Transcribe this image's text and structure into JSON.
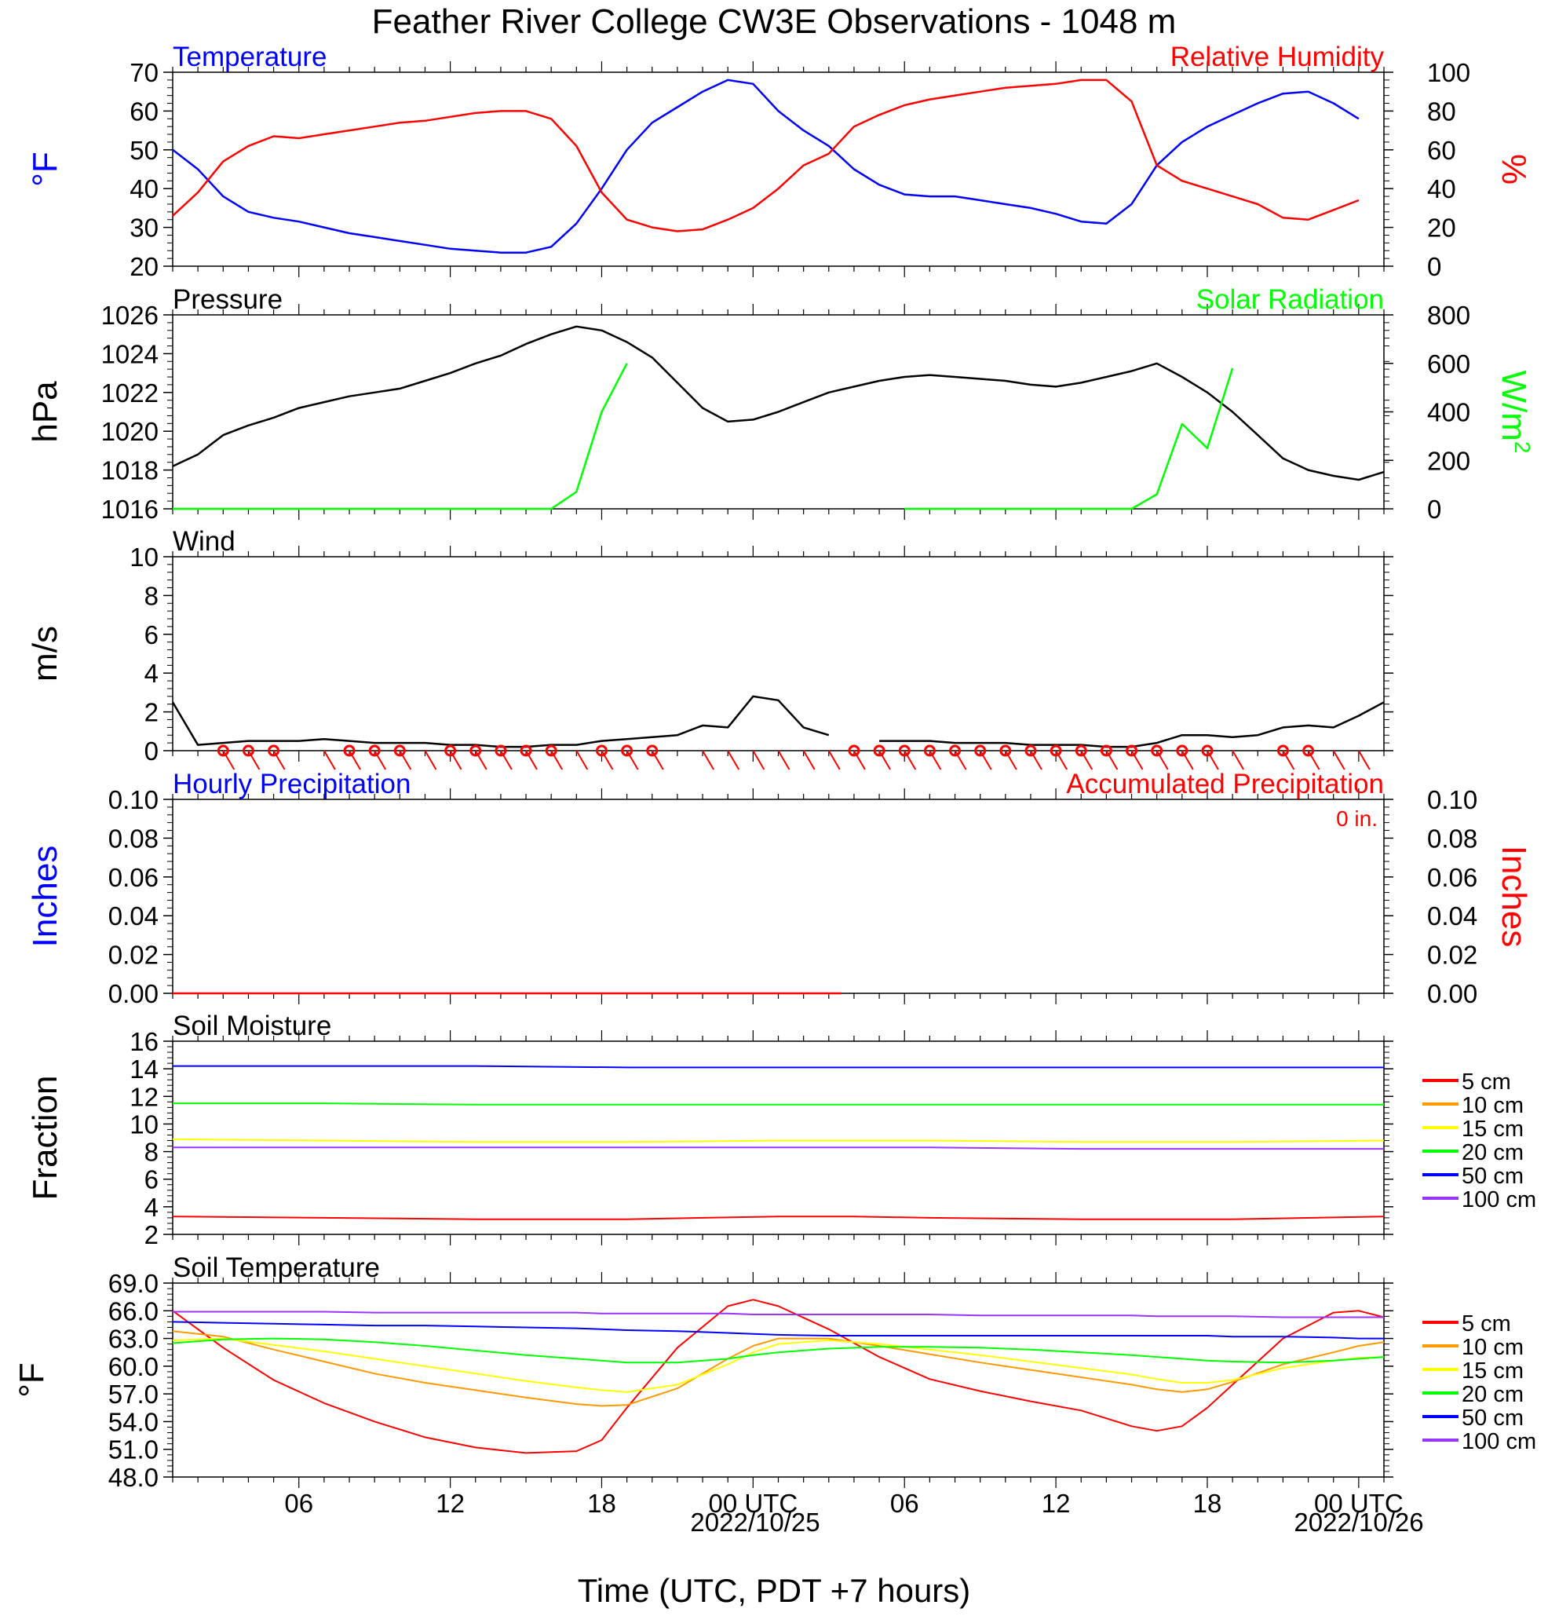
{
  "figure": {
    "title": "Feather River College CW3E Observations - 1048 m",
    "xlabel": "Time (UTC, PDT +7 hours)",
    "date_labels": [
      "2022/10/25",
      "2022/10/26"
    ]
  },
  "x_axis": {
    "range_hours": [
      0,
      48
    ],
    "major_ticks": [
      {
        "h": 5,
        "label": "06"
      },
      {
        "h": 11,
        "label": "12"
      },
      {
        "h": 17,
        "label": "18"
      },
      {
        "h": 23,
        "label": "00 UTC"
      },
      {
        "h": 29,
        "label": "06"
      },
      {
        "h": 35,
        "label": "12"
      },
      {
        "h": 41,
        "label": "18"
      },
      {
        "h": 47,
        "label": "00 UTC"
      }
    ]
  },
  "colors": {
    "blue": "#0000ff",
    "red": "#ff0000",
    "green": "#00ff00",
    "black": "#000000",
    "orange": "#ff9900",
    "yellow": "#ffff00",
    "purple": "#9933ff"
  },
  "chart_data": [
    {
      "type": "line",
      "panel": "temperature",
      "left_title": "Temperature",
      "right_title": "Relative Humidity",
      "ylabel": "°F",
      "ylim": [
        20,
        70
      ],
      "yticks": [
        20,
        30,
        40,
        50,
        60,
        70
      ],
      "y2label": "%",
      "y2lim": [
        0,
        100
      ],
      "y2ticks": [
        0,
        20,
        40,
        60,
        80,
        100
      ],
      "x_hours": [
        0,
        1,
        2,
        3,
        4,
        5,
        6,
        7,
        8,
        9,
        10,
        11,
        12,
        13,
        14,
        15,
        16,
        17,
        18,
        19,
        20,
        21,
        22,
        23,
        24,
        25,
        26,
        27,
        28,
        29,
        30,
        31,
        32,
        33,
        34,
        35,
        36,
        37,
        38,
        39,
        40,
        41,
        42,
        43,
        44,
        45,
        46,
        47,
        48
      ],
      "series": [
        {
          "color": "blue",
          "axis": "left",
          "values": [
            50,
            45,
            38,
            34,
            32.5,
            31.5,
            30,
            28.5,
            27.5,
            26.5,
            25.5,
            24.5,
            24,
            23.5,
            23.5,
            25,
            31,
            40,
            50,
            57,
            61,
            65,
            68,
            67,
            60,
            55,
            51,
            45,
            41,
            38.5,
            38,
            38,
            37,
            36,
            35,
            33.5,
            31.5,
            31,
            36,
            46,
            52,
            56,
            59,
            62,
            64.5,
            65,
            62,
            58,
            null
          ]
        },
        {
          "color": "red",
          "axis": "right",
          "values": [
            26,
            38,
            54,
            62,
            67,
            66,
            68,
            70,
            72,
            74,
            75,
            77,
            79,
            80,
            80,
            76,
            62,
            38,
            24,
            20,
            18,
            19,
            24,
            30,
            40,
            52,
            58,
            72,
            78,
            83,
            86,
            88,
            90,
            92,
            93,
            94,
            96,
            96,
            85,
            52,
            44,
            40,
            36,
            32,
            25,
            24,
            29,
            34,
            null
          ]
        }
      ]
    },
    {
      "type": "line",
      "panel": "pressure",
      "left_title": "Pressure",
      "right_title": "Solar Radiation",
      "ylabel": "hPa",
      "ylim": [
        1016,
        1026
      ],
      "yticks": [
        1016,
        1018,
        1020,
        1022,
        1024,
        1026
      ],
      "y2label": "W/m",
      "y2label_sup": "2",
      "y2lim": [
        0,
        800
      ],
      "y2ticks": [
        0,
        200,
        400,
        600,
        800
      ],
      "x_hours": [
        0,
        1,
        2,
        3,
        4,
        5,
        6,
        7,
        8,
        9,
        10,
        11,
        12,
        13,
        14,
        15,
        16,
        17,
        18,
        19,
        20,
        21,
        22,
        23,
        24,
        25,
        26,
        27,
        28,
        29,
        30,
        31,
        32,
        33,
        34,
        35,
        36,
        37,
        38,
        39,
        40,
        41,
        42,
        43,
        44,
        45,
        46,
        47,
        48
      ],
      "series": [
        {
          "color": "black",
          "axis": "left",
          "values": [
            1018.2,
            1018.8,
            1019.8,
            1020.3,
            1020.7,
            1021.2,
            1021.5,
            1021.8,
            1022.0,
            1022.2,
            1022.6,
            1023.0,
            1023.5,
            1023.9,
            1024.5,
            1025.0,
            1025.4,
            1025.2,
            1024.6,
            1023.8,
            1022.5,
            1021.2,
            1020.5,
            1020.6,
            1021.0,
            1021.5,
            1022.0,
            1022.3,
            1022.6,
            1022.8,
            1022.9,
            1022.8,
            1022.7,
            1022.6,
            1022.4,
            1022.3,
            1022.5,
            1022.8,
            1023.1,
            1023.5,
            1022.8,
            1022.0,
            1021.0,
            1019.8,
            1018.6,
            1018.0,
            1017.7,
            1017.5,
            1017.9
          ]
        },
        {
          "color": "green",
          "axis": "right",
          "values": [
            0,
            0,
            0,
            0,
            0,
            0,
            0,
            0,
            0,
            0,
            0,
            0,
            0,
            0,
            0,
            0,
            70,
            400,
            600,
            null,
            null,
            null,
            null,
            null,
            null,
            null,
            null,
            null,
            null,
            0,
            0,
            0,
            0,
            0,
            0,
            0,
            0,
            0,
            0,
            60,
            350,
            250,
            580,
            null,
            null,
            null,
            null,
            null,
            null
          ]
        }
      ]
    },
    {
      "type": "line",
      "panel": "wind",
      "left_title": "Wind",
      "ylabel": "m/s",
      "ylim": [
        0,
        10
      ],
      "yticks": [
        0,
        2,
        4,
        6,
        8,
        10
      ],
      "x_hours": [
        0,
        1,
        2,
        3,
        4,
        5,
        6,
        7,
        8,
        9,
        10,
        11,
        12,
        13,
        14,
        15,
        16,
        17,
        18,
        19,
        20,
        21,
        22,
        23,
        24,
        25,
        26,
        27,
        28,
        29,
        30,
        31,
        32,
        33,
        34,
        35,
        36,
        37,
        38,
        39,
        40,
        41,
        42,
        43,
        44,
        45,
        46,
        47,
        48
      ],
      "series": [
        {
          "color": "black",
          "axis": "left",
          "values": [
            2.5,
            0.3,
            0.4,
            0.5,
            0.5,
            0.5,
            0.6,
            0.5,
            0.4,
            0.4,
            0.4,
            0.3,
            0.3,
            0.2,
            0.2,
            0.3,
            0.3,
            0.5,
            0.6,
            0.7,
            0.8,
            1.3,
            1.2,
            2.8,
            2.6,
            1.2,
            0.8,
            null,
            0.5,
            0.5,
            0.5,
            0.4,
            0.4,
            0.4,
            0.3,
            0.3,
            0.3,
            0.2,
            0.2,
            0.4,
            0.8,
            0.8,
            0.7,
            0.8,
            1.2,
            1.3,
            1.2,
            1.8,
            2.5
          ]
        }
      ],
      "barb_hours": [
        2,
        3,
        4,
        6,
        7,
        8,
        9,
        10,
        11,
        12,
        13,
        14,
        15,
        16,
        17,
        18,
        19,
        21,
        22,
        23,
        24,
        25,
        26,
        27,
        28,
        29,
        30,
        31,
        32,
        33,
        34,
        35,
        36,
        37,
        38,
        39,
        40,
        41,
        42,
        44,
        45,
        46,
        47
      ],
      "calm_hours": [
        2,
        3,
        4,
        7,
        8,
        9,
        11,
        12,
        13,
        14,
        15,
        17,
        18,
        19,
        27,
        28,
        29,
        30,
        31,
        32,
        33,
        34,
        35,
        36,
        37,
        38,
        39,
        40,
        41,
        44,
        45
      ]
    },
    {
      "type": "line",
      "panel": "precipitation",
      "left_title": "Hourly Precipitation",
      "right_title": "Accumulated Precipitation",
      "annotation": "0 in.",
      "ylabel": "Inches",
      "ylim": [
        0,
        0.1
      ],
      "yticks": [
        "0.00",
        "0.02",
        "0.04",
        "0.06",
        "0.08",
        "0.10"
      ],
      "y2label": "Inches",
      "y2lim": [
        0,
        0.1
      ],
      "y2ticks": [
        "0.00",
        "0.02",
        "0.04",
        "0.06",
        "0.08",
        "0.10"
      ],
      "x_hours": [
        0,
        26.5,
        27,
        48
      ],
      "series": [
        {
          "color": "red",
          "axis": "left",
          "values": [
            0,
            0,
            null,
            0
          ]
        }
      ]
    },
    {
      "type": "line",
      "panel": "soil_moisture",
      "left_title": "Soil Moisture",
      "ylabel": "Fraction",
      "ylim": [
        2,
        16
      ],
      "yticks": [
        2,
        4,
        6,
        8,
        10,
        12,
        14,
        16
      ],
      "x_hours": [
        0,
        6,
        12,
        18,
        24,
        26.5,
        27,
        30,
        36,
        42,
        48
      ],
      "series": [
        {
          "name": "5 cm",
          "color": "red",
          "values": [
            3.3,
            3.2,
            3.1,
            3.1,
            3.3,
            3.3,
            3.3,
            3.2,
            3.1,
            3.1,
            3.3
          ]
        },
        {
          "name": "10 cm",
          "color": "orange",
          "values": [
            null,
            null,
            null,
            null,
            null,
            null,
            null,
            null,
            null,
            null,
            null
          ]
        },
        {
          "name": "15 cm",
          "color": "yellow",
          "values": [
            8.9,
            8.8,
            8.7,
            8.7,
            8.8,
            8.8,
            8.8,
            8.8,
            8.7,
            8.7,
            8.8
          ]
        },
        {
          "name": "20 cm",
          "color": "green",
          "values": [
            11.5,
            11.5,
            11.4,
            11.4,
            11.4,
            11.4,
            11.4,
            11.4,
            11.4,
            11.4,
            11.4
          ]
        },
        {
          "name": "50 cm",
          "color": "blue",
          "values": [
            14.2,
            14.2,
            14.2,
            14.1,
            14.1,
            14.1,
            14.1,
            14.1,
            14.1,
            14.1,
            14.1
          ]
        },
        {
          "name": "100 cm",
          "color": "purple",
          "values": [
            8.3,
            8.3,
            8.3,
            8.3,
            8.3,
            8.3,
            8.3,
            8.3,
            8.2,
            8.2,
            8.2
          ]
        }
      ]
    },
    {
      "type": "line",
      "panel": "soil_temperature",
      "left_title": "Soil Temperature",
      "ylabel": "°F",
      "ylim": [
        48,
        69
      ],
      "yticks": [
        "48.0",
        "51.0",
        "54.0",
        "57.0",
        "60.0",
        "63.0",
        "66.0",
        "69.0"
      ],
      "x_hours": [
        0,
        2,
        4,
        6,
        8,
        10,
        12,
        14,
        16,
        17,
        18,
        20,
        22,
        23,
        24,
        26,
        28,
        30,
        32,
        34,
        36,
        38,
        39,
        40,
        41,
        42,
        44,
        46,
        47,
        48
      ],
      "series": [
        {
          "name": "5 cm",
          "color": "red",
          "values": [
            66,
            62,
            58.5,
            56,
            54,
            52.3,
            51.2,
            50.6,
            50.8,
            52,
            55.5,
            62,
            66.5,
            67.2,
            66.5,
            64,
            61,
            58.6,
            57.3,
            56.2,
            55.2,
            53.5,
            53.0,
            53.5,
            55.5,
            58,
            63,
            65.8,
            66.0,
            65.3
          ]
        },
        {
          "name": "10 cm",
          "color": "orange",
          "values": [
            63.8,
            63.2,
            61.8,
            60.5,
            59.2,
            58.2,
            57.4,
            56.6,
            55.9,
            55.7,
            55.8,
            57.6,
            60.8,
            62.2,
            63.0,
            63.0,
            62.2,
            61.3,
            60.4,
            59.6,
            58.8,
            58.0,
            57.5,
            57.2,
            57.5,
            58.3,
            60.2,
            61.5,
            62.2,
            62.6
          ]
        },
        {
          "name": "15 cm",
          "color": "yellow",
          "values": [
            62.8,
            63.0,
            62.3,
            61.6,
            60.8,
            60.0,
            59.2,
            58.4,
            57.7,
            57.4,
            57.2,
            58.0,
            60.2,
            61.5,
            62.4,
            62.8,
            62.4,
            61.8,
            61.2,
            60.5,
            59.8,
            59.1,
            58.6,
            58.2,
            58.2,
            58.5,
            59.8,
            60.6,
            60.9,
            61.0
          ]
        },
        {
          "name": "20 cm",
          "color": "green",
          "values": [
            62.5,
            62.9,
            63.0,
            62.9,
            62.6,
            62.2,
            61.7,
            61.2,
            60.8,
            60.6,
            60.4,
            60.4,
            60.8,
            61.2,
            61.5,
            61.9,
            62.1,
            62.1,
            62.0,
            61.8,
            61.5,
            61.2,
            61.0,
            60.8,
            60.6,
            60.5,
            60.4,
            60.6,
            60.8,
            61.0
          ]
        },
        {
          "name": "50 cm",
          "color": "blue",
          "values": [
            64.8,
            64.7,
            64.6,
            64.5,
            64.4,
            64.4,
            64.3,
            64.2,
            64.1,
            64.0,
            63.9,
            63.8,
            63.6,
            63.5,
            63.4,
            63.3,
            63.3,
            63.3,
            63.3,
            63.3,
            63.3,
            63.3,
            63.3,
            63.3,
            63.3,
            63.2,
            63.2,
            63.1,
            63.0,
            63.0
          ]
        },
        {
          "name": "100 cm",
          "color": "purple",
          "values": [
            65.9,
            65.9,
            65.9,
            65.9,
            65.8,
            65.8,
            65.8,
            65.8,
            65.8,
            65.7,
            65.7,
            65.7,
            65.7,
            65.6,
            65.6,
            65.6,
            65.6,
            65.6,
            65.5,
            65.5,
            65.5,
            65.5,
            65.4,
            65.4,
            65.4,
            65.4,
            65.3,
            65.3,
            65.3,
            65.3
          ]
        }
      ]
    }
  ]
}
